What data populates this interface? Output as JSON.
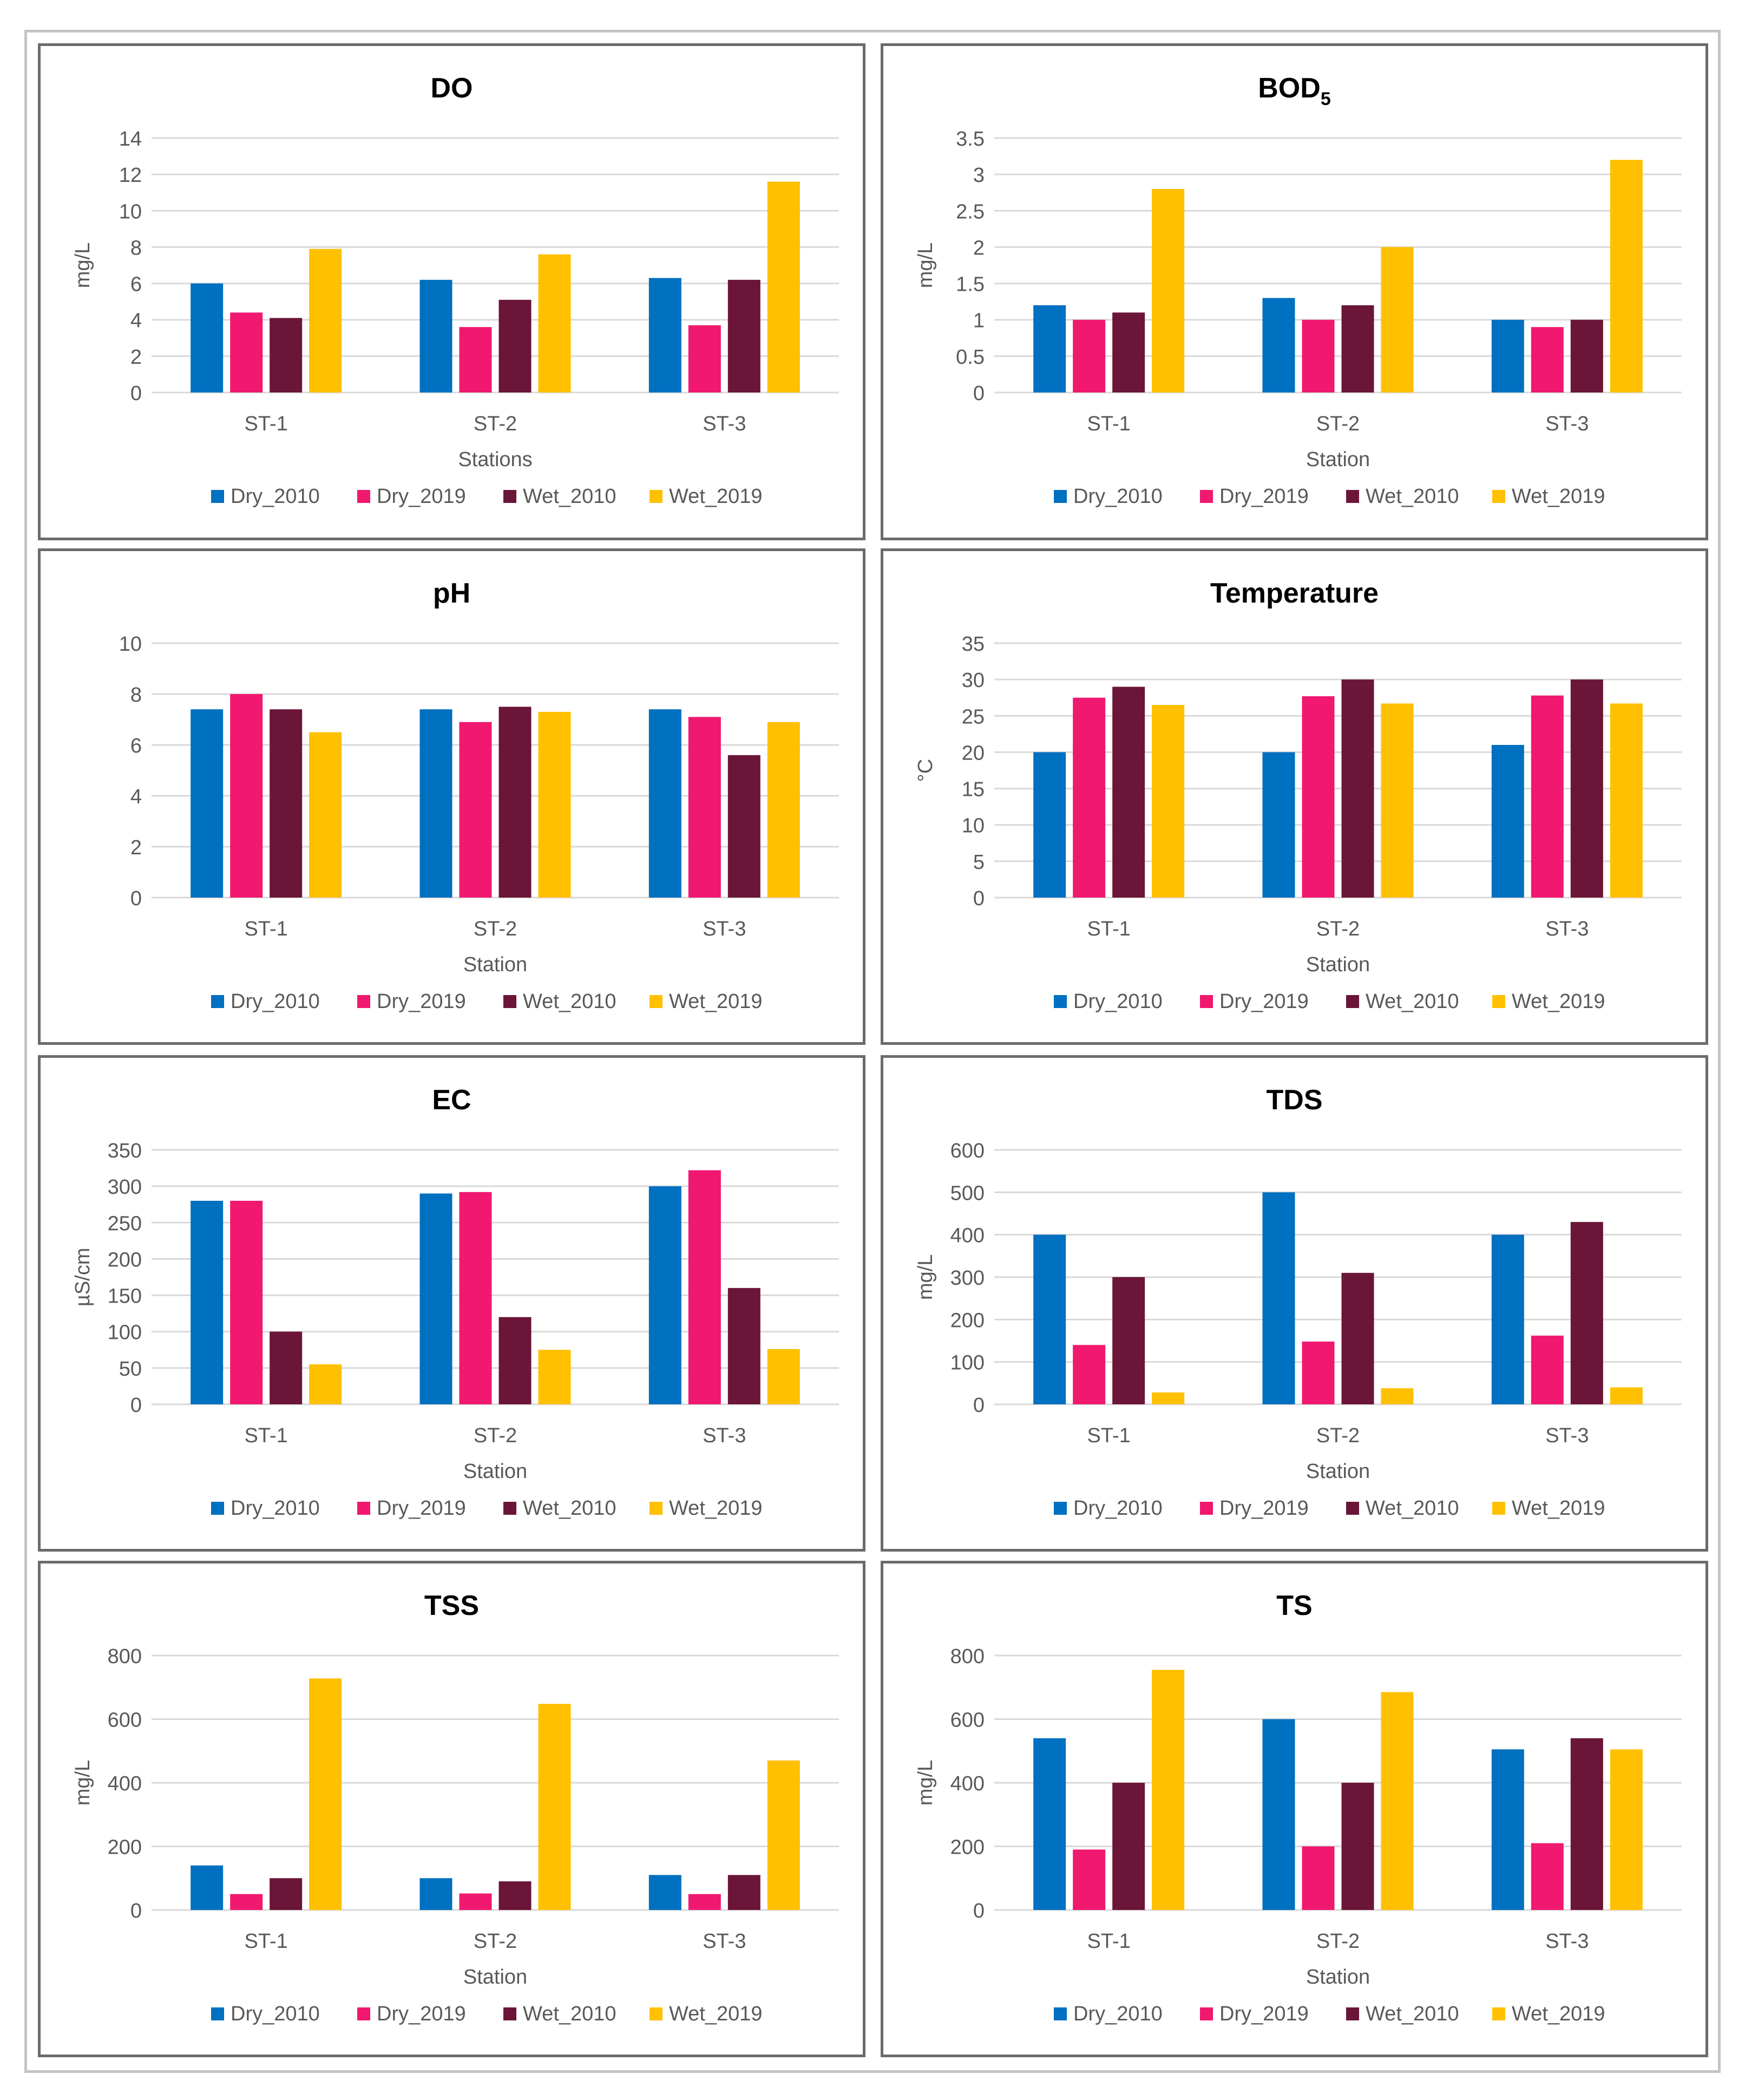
{
  "colors": {
    "Dry_2010": "#0070c0",
    "Dry_2019": "#f0186f",
    "Wet_2010": "#6b1538",
    "Wet_2019": "#ffc000",
    "grid": "#d9d9d9",
    "text": "#000000",
    "tick_text": "#595959",
    "panel_border": "#6b6b6b",
    "outer_border": "#c4c4c4"
  },
  "chart_data": [
    {
      "type": "bar",
      "title": "DO",
      "title_sub": "",
      "xlabel": "Stations",
      "ylabel": "mg/L",
      "ylim": [
        0,
        14
      ],
      "yticks": [
        "0",
        "2",
        "4",
        "6",
        "8",
        "10",
        "12",
        "14"
      ],
      "categories": [
        "ST-1",
        "ST-2",
        "ST-3"
      ],
      "series": [
        {
          "name": "Dry_2010",
          "values": [
            6.0,
            6.2,
            6.3
          ]
        },
        {
          "name": "Dry_2019",
          "values": [
            4.4,
            3.6,
            3.7
          ]
        },
        {
          "name": "Wet_2010",
          "values": [
            4.1,
            5.1,
            6.2
          ]
        },
        {
          "name": "Wet_2019",
          "values": [
            7.9,
            7.6,
            11.6
          ]
        }
      ],
      "legend_position": "bottom",
      "grid": true
    },
    {
      "type": "bar",
      "title": "BOD",
      "title_sub": "5",
      "xlabel": "Station",
      "ylabel": "mg/L",
      "ylim": [
        0,
        3.5
      ],
      "yticks": [
        "0",
        "0.5",
        "1",
        "1.5",
        "2",
        "2.5",
        "3",
        "3.5"
      ],
      "categories": [
        "ST-1",
        "ST-2",
        "ST-3"
      ],
      "series": [
        {
          "name": "Dry_2010",
          "values": [
            1.2,
            1.3,
            1.0
          ]
        },
        {
          "name": "Dry_2019",
          "values": [
            1.0,
            1.0,
            0.9
          ]
        },
        {
          "name": "Wet_2010",
          "values": [
            1.1,
            1.2,
            1.0
          ]
        },
        {
          "name": "Wet_2019",
          "values": [
            2.8,
            2.0,
            3.2
          ]
        }
      ],
      "legend_position": "bottom",
      "grid": true
    },
    {
      "type": "bar",
      "title": "pH",
      "title_sub": "",
      "xlabel": "Station",
      "ylabel": "",
      "ylim": [
        0,
        10
      ],
      "yticks": [
        "0",
        "2",
        "4",
        "6",
        "8",
        "10"
      ],
      "categories": [
        "ST-1",
        "ST-2",
        "ST-3"
      ],
      "series": [
        {
          "name": "Dry_2010",
          "values": [
            7.4,
            7.4,
            7.4
          ]
        },
        {
          "name": "Dry_2019",
          "values": [
            8.0,
            6.9,
            7.1
          ]
        },
        {
          "name": "Wet_2010",
          "values": [
            7.4,
            7.5,
            5.6
          ]
        },
        {
          "name": "Wet_2019",
          "values": [
            6.5,
            7.3,
            6.9
          ]
        }
      ],
      "legend_position": "bottom",
      "grid": true
    },
    {
      "type": "bar",
      "title": "Temperature",
      "title_sub": "",
      "xlabel": "Station",
      "ylabel": "°C",
      "ylim": [
        0,
        35
      ],
      "yticks": [
        "0",
        "5",
        "10",
        "15",
        "20",
        "25",
        "30",
        "35"
      ],
      "categories": [
        "ST-1",
        "ST-2",
        "ST-3"
      ],
      "series": [
        {
          "name": "Dry_2010",
          "values": [
            20,
            20,
            21
          ]
        },
        {
          "name": "Dry_2019",
          "values": [
            27.5,
            27.7,
            27.8
          ]
        },
        {
          "name": "Wet_2010",
          "values": [
            29,
            30,
            30
          ]
        },
        {
          "name": "Wet_2019",
          "values": [
            26.5,
            26.7,
            26.7
          ]
        }
      ],
      "legend_position": "bottom",
      "grid": true
    },
    {
      "type": "bar",
      "title": "EC",
      "title_sub": "",
      "xlabel": "Station",
      "ylabel": "µS/cm",
      "ylim": [
        0,
        350
      ],
      "yticks": [
        "0",
        "50",
        "100",
        "150",
        "200",
        "250",
        "300",
        "350"
      ],
      "categories": [
        "ST-1",
        "ST-2",
        "ST-3"
      ],
      "series": [
        {
          "name": "Dry_2010",
          "values": [
            280,
            290,
            300
          ]
        },
        {
          "name": "Dry_2019",
          "values": [
            280,
            292,
            322
          ]
        },
        {
          "name": "Wet_2010",
          "values": [
            100,
            120,
            160
          ]
        },
        {
          "name": "Wet_2019",
          "values": [
            55,
            75,
            76
          ]
        }
      ],
      "legend_position": "bottom",
      "grid": true
    },
    {
      "type": "bar",
      "title": "TDS",
      "title_sub": "",
      "xlabel": "Station",
      "ylabel": "mg/L",
      "ylim": [
        0,
        600
      ],
      "yticks": [
        "0",
        "100",
        "200",
        "300",
        "400",
        "500",
        "600"
      ],
      "categories": [
        "ST-1",
        "ST-2",
        "ST-3"
      ],
      "series": [
        {
          "name": "Dry_2010",
          "values": [
            400,
            500,
            400
          ]
        },
        {
          "name": "Dry_2019",
          "values": [
            140,
            148,
            162
          ]
        },
        {
          "name": "Wet_2010",
          "values": [
            300,
            310,
            430
          ]
        },
        {
          "name": "Wet_2019",
          "values": [
            28,
            38,
            40
          ]
        }
      ],
      "legend_position": "bottom",
      "grid": true
    },
    {
      "type": "bar",
      "title": "TSS",
      "title_sub": "",
      "xlabel": "Station",
      "ylabel": "mg/L",
      "ylim": [
        0,
        800
      ],
      "yticks": [
        "0",
        "200",
        "400",
        "600",
        "800"
      ],
      "categories": [
        "ST-1",
        "ST-2",
        "ST-3"
      ],
      "series": [
        {
          "name": "Dry_2010",
          "values": [
            140,
            100,
            110
          ]
        },
        {
          "name": "Dry_2019",
          "values": [
            50,
            52,
            50
          ]
        },
        {
          "name": "Wet_2010",
          "values": [
            100,
            90,
            110
          ]
        },
        {
          "name": "Wet_2019",
          "values": [
            728,
            648,
            470
          ]
        }
      ],
      "legend_position": "bottom",
      "grid": true
    },
    {
      "type": "bar",
      "title": "TS",
      "title_sub": "",
      "xlabel": "Station",
      "ylabel": "mg/L",
      "ylim": [
        0,
        800
      ],
      "yticks": [
        "0",
        "200",
        "400",
        "600",
        "800"
      ],
      "categories": [
        "ST-1",
        "ST-2",
        "ST-3"
      ],
      "series": [
        {
          "name": "Dry_2010",
          "values": [
            540,
            600,
            505
          ]
        },
        {
          "name": "Dry_2019",
          "values": [
            190,
            200,
            210
          ]
        },
        {
          "name": "Wet_2010",
          "values": [
            400,
            400,
            540
          ]
        },
        {
          "name": "Wet_2019",
          "values": [
            755,
            685,
            505
          ]
        }
      ],
      "legend_position": "bottom",
      "grid": true
    }
  ]
}
